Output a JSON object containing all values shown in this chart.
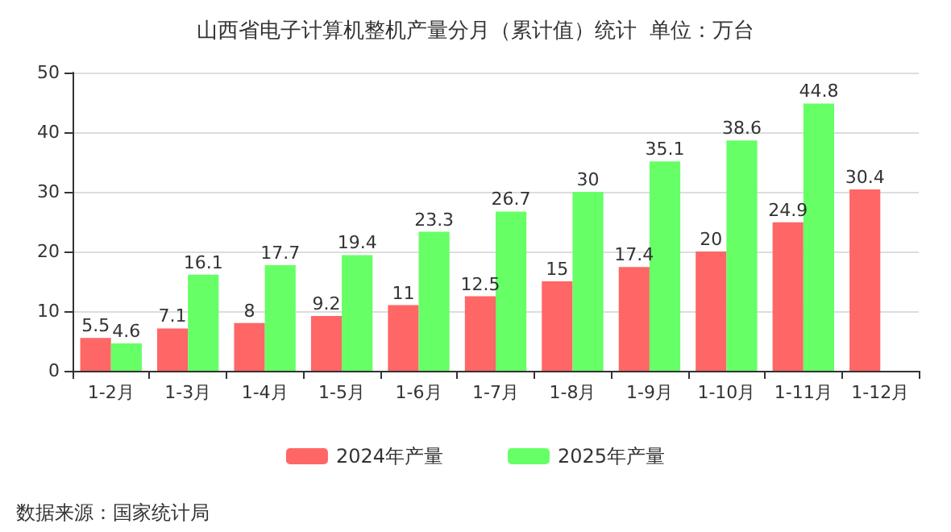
{
  "chart_data": {
    "type": "bar",
    "title": "山西省电子计算机整机产量分月（累计值）统计  单位：万台",
    "categories": [
      "1-2月",
      "1-3月",
      "1-4月",
      "1-5月",
      "1-6月",
      "1-7月",
      "1-8月",
      "1-9月",
      "1-10月",
      "1-11月",
      "1-12月"
    ],
    "series": [
      {
        "name": "2024年产量",
        "color": "#ff6666",
        "values": [
          5.5,
          7.1,
          8,
          9.2,
          11,
          12.5,
          15,
          17.4,
          20,
          24.9,
          30.4
        ]
      },
      {
        "name": "2025年产量",
        "color": "#66ff66",
        "values": [
          4.6,
          16.1,
          17.7,
          19.4,
          23.3,
          26.7,
          30,
          35.1,
          38.6,
          44.8,
          null
        ]
      }
    ],
    "ylim": [
      0,
      50
    ],
    "yticks": [
      0,
      10,
      20,
      30,
      40,
      50
    ],
    "grid": "y",
    "legend": "bottom",
    "data_labels": true,
    "annotations": [
      "数据来源：国家统计局"
    ]
  }
}
